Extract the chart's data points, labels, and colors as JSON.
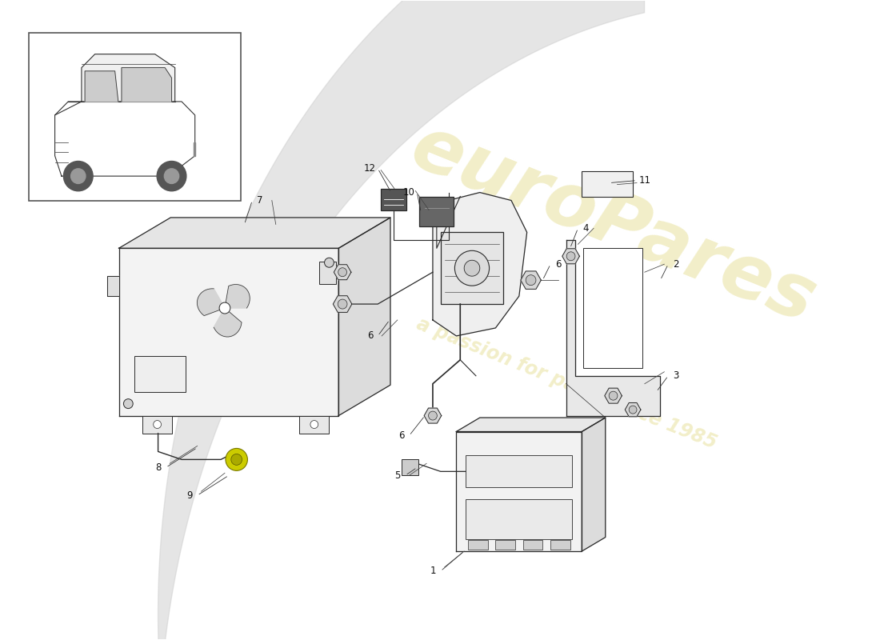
{
  "background_color": "#ffffff",
  "watermark_text": "euroPares",
  "watermark_subtext": "a passion for parts since 1985",
  "watermark_color": "#d4c84a",
  "watermark_alpha": 0.3,
  "line_color": "#2a2a2a",
  "label_fontsize": 8.5,
  "swoosh_color": "#d0d0d0",
  "swoosh_alpha": 0.55,
  "part_fill": "#f5f5f5",
  "part_fill_dark": "#e0e0e0",
  "part_fill_mid": "#ececec"
}
